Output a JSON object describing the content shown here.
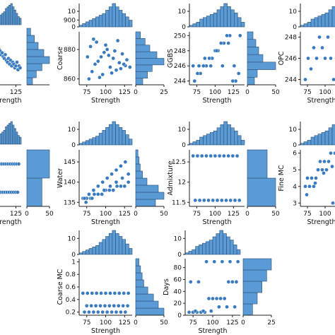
{
  "chart_data": [
    {
      "type": "scatter",
      "x": [
        68,
        71,
        74,
        77,
        80,
        83,
        86,
        89,
        92,
        95,
        98,
        101,
        104,
        107,
        110,
        113,
        116,
        119,
        122,
        125,
        128,
        131,
        134,
        137
      ],
      "y": [
        95,
        92,
        90,
        89,
        88,
        86,
        87,
        85,
        84,
        86,
        83,
        82,
        84,
        81,
        83,
        80,
        82,
        81,
        79,
        80,
        82,
        78,
        80,
        79
      ],
      "xlabel": "Strength",
      "ylabel": "",
      "xticks": [
        125
      ],
      "xlim": [
        60,
        140
      ],
      "ylim": [
        70,
        100
      ],
      "hist_x_ticks": [],
      "hist_x_values": [
        2,
        3,
        4,
        5,
        6,
        7,
        8,
        10,
        11,
        12,
        13,
        11,
        9,
        7,
        5,
        4
      ],
      "hist_y_ticks": [],
      "hist_y_values": [
        3,
        5,
        8,
        12,
        9,
        6,
        4,
        2
      ]
    },
    {
      "type": "scatter",
      "x": [
        78,
        82,
        86,
        90,
        94,
        98,
        102,
        106,
        110,
        114,
        118,
        122,
        126,
        80,
        88,
        96,
        104,
        112,
        120,
        128,
        84,
        92,
        100,
        108,
        116,
        124,
        76,
        132
      ],
      "y": [
        860,
        865,
        870,
        872,
        875,
        878,
        880,
        868,
        874,
        866,
        871,
        877,
        869,
        882,
        885,
        863,
        876,
        879,
        867,
        873,
        887,
        861,
        883,
        864,
        886,
        870,
        875,
        868
      ],
      "xlabel": "Strength",
      "ylabel": "Coarse",
      "xticks": [
        75,
        100,
        125
      ],
      "xlim": [
        65,
        135
      ],
      "ylim": [
        856,
        892
      ],
      "yticks": [
        860,
        880,
        900
      ],
      "hist_x_ticks": [
        10,
        0
      ],
      "hist_x_values": [
        1,
        2,
        3,
        4,
        5,
        6,
        7,
        8,
        10,
        12,
        14,
        12,
        10,
        8,
        6,
        4
      ],
      "hist_y_ticks": [
        0,
        25
      ],
      "hist_y_values": [
        6,
        10,
        14,
        24,
        18,
        12,
        8,
        4
      ]
    },
    {
      "type": "scatter",
      "x": [
        72,
        80,
        88,
        96,
        104,
        112,
        120,
        128,
        76,
        84,
        92,
        100,
        108,
        116,
        124,
        132,
        70,
        86,
        102,
        118,
        134,
        78,
        94,
        110,
        126
      ],
      "y": [
        244,
        245,
        246,
        247,
        248,
        249,
        250,
        244,
        245,
        246,
        247,
        248,
        249,
        250,
        244,
        245,
        246,
        247,
        248,
        249,
        250,
        246,
        246,
        246,
        246
      ],
      "xlabel": "Strength",
      "ylabel": "GGBS",
      "xticks": [
        75,
        100,
        125
      ],
      "xlim": [
        65,
        140
      ],
      "ylim": [
        243.5,
        250.5
      ],
      "yticks": [
        244,
        246,
        248,
        250
      ],
      "hist_x_ticks": [
        10,
        0
      ],
      "hist_x_values": [
        1,
        2,
        3,
        5,
        6,
        7,
        8,
        9,
        11,
        13,
        15,
        13,
        11,
        9,
        6,
        3
      ],
      "hist_y_ticks": [
        0,
        50
      ],
      "hist_y_values": [
        10,
        14,
        40,
        22,
        16,
        12,
        8
      ]
    },
    {
      "type": "scatter",
      "x": [
        72,
        80,
        88,
        96,
        104,
        112,
        120,
        76,
        84,
        92,
        100,
        108,
        116
      ],
      "y": [
        244,
        245,
        246,
        247,
        248,
        244,
        245,
        246,
        247,
        248,
        246,
        246,
        246
      ],
      "xlabel": "Strength",
      "ylabel": "OPC",
      "xticks": [
        75,
        100
      ],
      "xlim": [
        65,
        125
      ],
      "ylim": [
        243.5,
        248.5
      ],
      "yticks": [
        244,
        246,
        248
      ],
      "hist_x_ticks": [
        10,
        0
      ],
      "hist_x_values": [
        1,
        2,
        3,
        5,
        6,
        7,
        8,
        9,
        11,
        13,
        15,
        13
      ],
      "hist_y_ticks": [],
      "hist_y_values": []
    },
    {
      "type": "scatter",
      "x": [
        70,
        76,
        82,
        88,
        94,
        100,
        106,
        112,
        118,
        124,
        130,
        73,
        79,
        85,
        91,
        97,
        103,
        109,
        115,
        121,
        127,
        133
      ],
      "y": [
        1,
        1,
        1,
        1,
        1,
        1,
        1,
        1,
        1,
        1,
        1,
        2,
        2,
        2,
        2,
        2,
        2,
        2,
        2,
        2,
        2,
        2
      ],
      "xlabel": "Strength",
      "ylabel": "",
      "xticks": [
        125
      ],
      "xlim": [
        60,
        140
      ],
      "ylim": [
        0.5,
        2.5
      ],
      "hist_x_ticks": [],
      "hist_x_values": [
        2,
        3,
        4,
        5,
        6,
        7,
        8,
        10,
        11,
        12,
        13,
        11,
        9,
        7,
        5,
        4
      ],
      "hist_y_ticks": [
        0,
        50
      ],
      "hist_y_values": [
        30,
        45
      ]
    },
    {
      "type": "scatter",
      "x": [
        70,
        75,
        80,
        85,
        90,
        95,
        100,
        105,
        110,
        115,
        120,
        125,
        130,
        72,
        78,
        84,
        90,
        96,
        102,
        108,
        114,
        120,
        126,
        74,
        82,
        90,
        98,
        106,
        114,
        122,
        130
      ],
      "y": [
        136,
        136,
        136,
        137,
        137,
        137,
        138,
        138,
        138,
        139,
        139,
        139,
        140,
        136,
        137,
        138,
        139,
        140,
        141,
        142,
        143,
        144,
        145,
        135,
        136,
        137,
        138,
        139,
        140,
        141,
        142
      ],
      "xlabel": "Strength",
      "ylabel": "Water",
      "xticks": [
        75,
        100,
        125
      ],
      "xlim": [
        65,
        135
      ],
      "ylim": [
        134,
        148
      ],
      "yticks": [
        135,
        140,
        145
      ],
      "hist_x_ticks": [
        10,
        0
      ],
      "hist_x_values": [
        1,
        2,
        3,
        4,
        5,
        6,
        8,
        10,
        12,
        14,
        16,
        14,
        12,
        10,
        7,
        4
      ],
      "hist_y_ticks": [
        0,
        50
      ],
      "hist_y_values": [
        35,
        50,
        40,
        20,
        12,
        8,
        6,
        4
      ]
    },
    {
      "type": "scatter",
      "x": [
        70,
        76,
        82,
        88,
        94,
        100,
        106,
        112,
        118,
        124,
        130,
        73,
        79,
        85,
        91,
        97,
        103,
        109,
        115,
        121,
        127,
        133
      ],
      "y": [
        12.65,
        12.65,
        12.65,
        12.65,
        12.65,
        12.65,
        12.65,
        12.65,
        12.65,
        12.65,
        12.65,
        11.55,
        11.55,
        11.55,
        11.55,
        11.55,
        11.55,
        11.55,
        11.55,
        11.55,
        11.55,
        11.55
      ],
      "xlabel": "Strength",
      "ylabel": "Admixture",
      "xticks": [
        75,
        100,
        125
      ],
      "xlim": [
        65,
        140
      ],
      "ylim": [
        11.4,
        12.8
      ],
      "yticks": [
        11.5,
        12.0,
        12.5
      ],
      "hist_x_ticks": [
        10,
        0
      ],
      "hist_x_values": [
        1,
        2,
        3,
        5,
        6,
        7,
        8,
        9,
        11,
        13,
        15,
        13,
        11,
        9,
        6,
        3
      ],
      "hist_y_ticks": [
        0,
        50
      ],
      "hist_y_values": [
        50,
        35
      ]
    },
    {
      "type": "scatter",
      "x": [
        72,
        78,
        84,
        90,
        96,
        102,
        108,
        114,
        120,
        75,
        81,
        87,
        93,
        99,
        105,
        111,
        117,
        123,
        74,
        86,
        98,
        110,
        122
      ],
      "y": [
        4,
        4,
        4,
        5,
        5,
        5,
        6,
        6,
        6,
        4.5,
        4.5,
        4.5,
        5.5,
        5.5,
        5.5,
        3,
        3,
        3,
        3.5,
        4.2,
        4.8,
        5.2,
        5.8
      ],
      "xlabel": "Strength",
      "ylabel": "Fine MC",
      "xticks": [
        75,
        100
      ],
      "xlim": [
        65,
        125
      ],
      "ylim": [
        2.8,
        6.2
      ],
      "yticks": [
        3,
        4,
        5,
        6
      ],
      "hist_x_ticks": [
        10,
        0
      ],
      "hist_x_values": [
        1,
        2,
        3,
        5,
        6,
        7,
        8,
        9,
        11,
        13,
        15,
        13
      ],
      "hist_y_ticks": [],
      "hist_y_values": []
    },
    {
      "type": "scatter",
      "x": [
        72,
        78,
        84,
        90,
        96,
        102,
        108,
        114,
        120,
        126,
        75,
        81,
        87,
        93,
        99,
        105,
        111,
        117,
        123,
        129,
        70,
        76,
        82,
        88,
        94,
        100,
        106,
        112,
        118,
        124,
        130
      ],
      "y": [
        0.2,
        0.2,
        0.2,
        0.2,
        0.2,
        0.2,
        0.2,
        0.2,
        0.2,
        0.2,
        0.3,
        0.3,
        0.3,
        0.3,
        0.3,
        0.3,
        0.3,
        0.3,
        0.3,
        0.3,
        0.5,
        0.5,
        0.5,
        0.5,
        0.5,
        0.5,
        0.5,
        0.5,
        0.5,
        0.5,
        0.5
      ],
      "xlabel": "Strength",
      "ylabel": "Coarse MC",
      "xticks": [
        75,
        100,
        125
      ],
      "xlim": [
        65,
        135
      ],
      "ylim": [
        0.15,
        1.05
      ],
      "yticks": [
        0.2,
        0.4,
        0.6,
        0.8,
        1.0
      ],
      "hist_x_ticks": [
        10,
        0
      ],
      "hist_x_values": [
        1,
        2,
        3,
        4,
        5,
        6,
        8,
        10,
        12,
        14,
        16,
        14,
        12,
        10,
        7,
        4
      ],
      "hist_y_ticks": [
        0,
        50
      ],
      "hist_y_values": [
        35,
        28,
        22,
        15,
        10,
        8,
        6,
        4
      ]
    },
    {
      "type": "scatter",
      "x": [
        70,
        75,
        80,
        85,
        90,
        95,
        100,
        105,
        110,
        115,
        120,
        125,
        130,
        72,
        82,
        92,
        102,
        112,
        122,
        132,
        78,
        88,
        98,
        108,
        118,
        128
      ],
      "y": [
        5,
        5,
        5,
        5,
        5,
        28,
        28,
        28,
        28,
        28,
        56,
        56,
        56,
        56,
        56,
        90,
        90,
        90,
        90,
        90,
        7,
        7,
        7,
        14,
        14,
        14
      ],
      "xlabel": "Strength",
      "ylabel": "Days",
      "xticks": [
        75,
        100,
        125
      ],
      "xlim": [
        65,
        135
      ],
      "ylim": [
        0,
        95
      ],
      "yticks": [
        0,
        20,
        40,
        60,
        80
      ],
      "hist_x_ticks": [
        10,
        0
      ],
      "hist_x_values": [
        1,
        2,
        3,
        5,
        6,
        7,
        8,
        9,
        11,
        13,
        15,
        13,
        11,
        9,
        6,
        3
      ],
      "hist_y_ticks": [
        0,
        25
      ],
      "hist_y_values": [
        10,
        15,
        20,
        25,
        30
      ]
    }
  ]
}
